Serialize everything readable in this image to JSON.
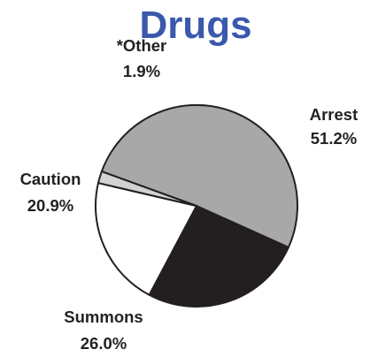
{
  "chart_data": {
    "type": "pie",
    "title": "Drugs",
    "title_color": "#3a59ad",
    "slices": [
      {
        "label": "Arrest",
        "value": 51.2,
        "value_text": "51.2%",
        "color": "#a8a8a8"
      },
      {
        "label": "Summons",
        "value": 26.0,
        "value_text": "26.0%",
        "color": "#231f20"
      },
      {
        "label": "Caution",
        "value": 20.9,
        "value_text": "20.9%",
        "color": "#ffffff"
      },
      {
        "label": "*Other",
        "value": 1.9,
        "value_text": "1.9%",
        "color": "#d2d2d2"
      }
    ],
    "outline_color": "#231f20",
    "label_color": "#222222"
  }
}
